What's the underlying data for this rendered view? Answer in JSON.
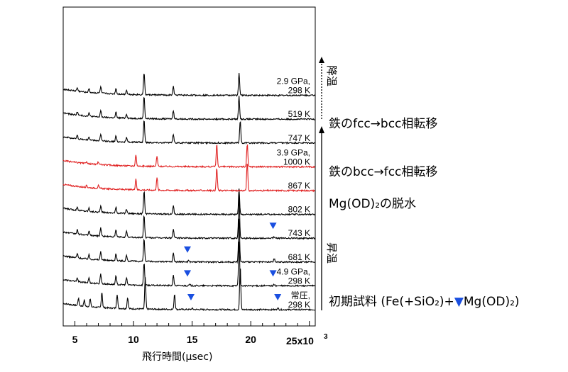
{
  "chart_data": {
    "type": "line",
    "xlabel": "飛行時間(μsec)",
    "x_multiplier_label": "25x10",
    "x_multiplier_exp": "3",
    "xlim": [
      4,
      25.5
    ],
    "x_ticks": [
      {
        "value": 5,
        "label": "5"
      },
      {
        "value": 10,
        "label": "10"
      },
      {
        "value": 15,
        "label": "15"
      },
      {
        "value": 20,
        "label": "20"
      }
    ],
    "series_colors": {
      "black": "#000000",
      "red": "#e02020"
    },
    "marker_color": "#1a4fe0",
    "series": [
      {
        "line1": "常圧,",
        "line2": "298 K",
        "color": "black",
        "peaks": [
          [
            5.3,
            0.25
          ],
          [
            5.8,
            0.22
          ],
          [
            6.3,
            0.28
          ],
          [
            7.3,
            0.55
          ],
          [
            8.6,
            0.5
          ],
          [
            9.5,
            0.4
          ],
          [
            11.0,
            1.1
          ],
          [
            13.5,
            0.55
          ],
          [
            15.0,
            0.04
          ],
          [
            19.1,
            1.55
          ],
          [
            22.3,
            0.06
          ]
        ]
      },
      {
        "line1": "4.9 GPa,",
        "line2": "298 K",
        "color": "black",
        "peaks": [
          [
            5.2,
            0.15
          ],
          [
            6.2,
            0.18
          ],
          [
            7.2,
            0.35
          ],
          [
            8.5,
            0.3
          ],
          [
            9.4,
            0.25
          ],
          [
            10.9,
            0.8
          ],
          [
            13.4,
            0.35
          ],
          [
            14.8,
            0.04
          ],
          [
            19.0,
            1.55
          ],
          [
            22.0,
            0.05
          ]
        ]
      },
      {
        "line1": "681 K",
        "line2": "",
        "color": "black",
        "peaks": [
          [
            5.2,
            0.15
          ],
          [
            6.2,
            0.15
          ],
          [
            7.2,
            0.3
          ],
          [
            8.5,
            0.25
          ],
          [
            9.4,
            0.2
          ],
          [
            10.9,
            0.8
          ],
          [
            13.4,
            0.3
          ],
          [
            14.7,
            0.05
          ],
          [
            19.0,
            1.55
          ],
          [
            22.0,
            0.12
          ]
        ]
      },
      {
        "line1": "743 K",
        "line2": "",
        "color": "black",
        "peaks": [
          [
            5.2,
            0.15
          ],
          [
            6.2,
            0.15
          ],
          [
            7.2,
            0.3
          ],
          [
            8.5,
            0.25
          ],
          [
            9.4,
            0.2
          ],
          [
            10.9,
            0.8
          ],
          [
            13.4,
            0.3
          ],
          [
            19.0,
            1.55
          ],
          [
            22.0,
            0.05
          ]
        ]
      },
      {
        "line1": "802 K",
        "line2": "",
        "color": "black",
        "peaks": [
          [
            5.2,
            0.12
          ],
          [
            6.2,
            0.12
          ],
          [
            7.2,
            0.22
          ],
          [
            8.5,
            0.2
          ],
          [
            9.4,
            0.15
          ],
          [
            10.9,
            0.8
          ],
          [
            13.4,
            0.3
          ],
          [
            19.0,
            0.9
          ]
        ]
      },
      {
        "line1": "867 K",
        "line2": "",
        "color": "red",
        "peaks": [
          [
            6.0,
            0.08
          ],
          [
            7.0,
            0.1
          ],
          [
            10.2,
            0.4
          ],
          [
            12.0,
            0.45
          ],
          [
            17.1,
            0.8
          ],
          [
            19.7,
            1.0
          ]
        ]
      },
      {
        "line1": "3.9 GPa,",
        "line2": "1000 K",
        "color": "red",
        "peaks": [
          [
            6.0,
            0.08
          ],
          [
            7.0,
            0.1
          ],
          [
            10.2,
            0.4
          ],
          [
            12.0,
            0.35
          ],
          [
            17.1,
            0.8
          ],
          [
            19.7,
            0.8
          ]
        ]
      },
      {
        "line1": "747 K",
        "line2": "",
        "color": "black",
        "peaks": [
          [
            5.2,
            0.12
          ],
          [
            6.2,
            0.12
          ],
          [
            7.2,
            0.22
          ],
          [
            8.5,
            0.2
          ],
          [
            9.4,
            0.15
          ],
          [
            10.9,
            0.8
          ],
          [
            13.4,
            0.3
          ],
          [
            19.1,
            0.8
          ]
        ]
      },
      {
        "line1": "519 K",
        "line2": "",
        "color": "black",
        "peaks": [
          [
            5.2,
            0.12
          ],
          [
            6.2,
            0.12
          ],
          [
            7.2,
            0.22
          ],
          [
            8.5,
            0.2
          ],
          [
            9.4,
            0.15
          ],
          [
            10.9,
            0.8
          ],
          [
            13.4,
            0.3
          ],
          [
            19.0,
            0.8
          ]
        ]
      },
      {
        "line1": "2.9 GPa,",
        "line2": "298 K",
        "color": "black",
        "peaks": [
          [
            5.2,
            0.12
          ],
          [
            6.2,
            0.15
          ],
          [
            7.2,
            0.22
          ],
          [
            8.5,
            0.2
          ],
          [
            9.4,
            0.15
          ],
          [
            10.9,
            0.8
          ],
          [
            13.4,
            0.3
          ],
          [
            19.0,
            0.8
          ]
        ]
      }
    ],
    "markers": [
      {
        "series": 0,
        "x": 14.9
      },
      {
        "series": 0,
        "x": 22.3
      },
      {
        "series": 1,
        "x": 14.6
      },
      {
        "series": 1,
        "x": 21.9
      },
      {
        "series": 2,
        "x": 14.6
      },
      {
        "series": 3,
        "x": 21.9
      }
    ]
  },
  "annotations": {
    "cool_label": "降温",
    "heat_label": "昇温",
    "fcc_to_bcc": "鉄のfcc→bcc相転移",
    "bcc_to_fcc": "鉄のbcc→fcc相転移",
    "dehydration": "Mg(OD)₂の脱水",
    "initial": "初期試料 (Fe(+SiO₂)+",
    "initial_tail": "Mg(OD)₂)"
  }
}
